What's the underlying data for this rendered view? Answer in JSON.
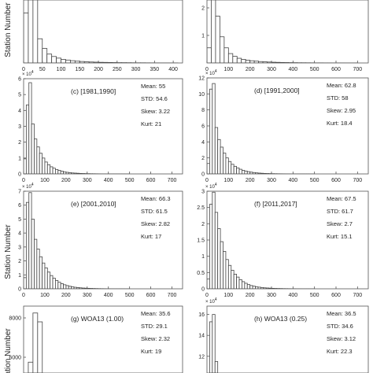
{
  "ylabel": "Station Number",
  "chart_data": [
    {
      "type": "bar",
      "panel": "top-left (partially visible, cropped at top)",
      "title": "",
      "ylabel": "Station Number",
      "xticks": [
        0,
        50,
        100,
        150,
        200,
        250,
        300,
        350,
        400
      ],
      "xlim": [
        0,
        425
      ],
      "yticks": [],
      "ymax": 3.9,
      "bin_width": 12.5,
      "values": [
        3.1,
        8.0,
        4.1,
        1.5,
        0.9,
        0.55,
        0.4,
        0.3,
        0.22,
        0.18,
        0.14,
        0.11,
        0.09,
        0.07,
        0.06,
        0.05,
        0.04,
        0.035,
        0.03,
        0.025,
        0.02,
        0.018,
        0.015,
        0.012,
        0.01,
        0.01,
        0.008,
        0.007,
        0.006,
        0.005,
        0.005,
        0.004,
        0.004
      ]
    },
    {
      "type": "bar",
      "panel": "top-right (partially visible, cropped at top)",
      "title": "",
      "xticks": [
        0,
        100,
        200,
        300,
        400,
        500,
        600,
        700
      ],
      "xlim": [
        0,
        750
      ],
      "yticks": [
        1,
        2
      ],
      "ymax": 2.3,
      "bin_width": 20,
      "values": [
        0.55,
        2.9,
        1.7,
        0.95,
        0.55,
        0.34,
        0.24,
        0.17,
        0.13,
        0.1,
        0.08,
        0.065,
        0.05,
        0.04,
        0.033,
        0.027,
        0.022,
        0.018,
        0.015,
        0.012,
        0.01,
        0.008,
        0.007,
        0.006,
        0.005,
        0.004,
        0.004,
        0.003,
        0.003,
        0.002,
        0.002,
        0.002,
        0.001,
        0.001,
        0.001
      ]
    },
    {
      "type": "bar",
      "panel": "(c)",
      "title": "(c)   [1981,1990]",
      "exponent": "× 10",
      "exponent_power": "4",
      "xticks": [
        0,
        100,
        200,
        300,
        400,
        500,
        600,
        700
      ],
      "xlim": [
        0,
        750
      ],
      "yticks": [
        0,
        1,
        2,
        3,
        4,
        5,
        6
      ],
      "ylim": [
        0,
        6
      ],
      "bin_width": 12.5,
      "stats": [
        "Mean: 55",
        "STD: 54.6",
        "Skew: 3.22",
        "Kurt: 21"
      ],
      "values": [
        0.95,
        4.35,
        5.75,
        3.15,
        2.2,
        1.7,
        1.3,
        1.0,
        0.75,
        0.58,
        0.45,
        0.36,
        0.28,
        0.22,
        0.17,
        0.13,
        0.1,
        0.08,
        0.06,
        0.05,
        0.04,
        0.03,
        0.025,
        0.02,
        0.015,
        0.012,
        0.01,
        0.008,
        0.006,
        0.005,
        0.004,
        0.003,
        0.003,
        0.002,
        0.002,
        0.002,
        0.001,
        0.001,
        0.001,
        0.001
      ]
    },
    {
      "type": "bar",
      "panel": "(d)",
      "title": "(d)   [1991,2000]",
      "exponent": "× 10",
      "exponent_power": "4",
      "xticks": [
        0,
        100,
        200,
        300,
        400,
        500,
        600,
        700
      ],
      "xlim": [
        0,
        750
      ],
      "yticks": [
        0,
        2,
        4,
        6,
        8,
        10,
        12
      ],
      "ylim": [
        0,
        12
      ],
      "bin_width": 12.5,
      "stats": [
        "Mean: 62.8",
        "STD: 58",
        "Skew: 2.95",
        "Kurt: 18.4"
      ],
      "values": [
        1.3,
        10.6,
        11.3,
        5.8,
        4.3,
        3.35,
        2.6,
        2.0,
        1.55,
        1.2,
        0.95,
        0.75,
        0.58,
        0.45,
        0.36,
        0.28,
        0.22,
        0.17,
        0.13,
        0.1,
        0.08,
        0.06,
        0.05,
        0.04,
        0.03,
        0.025,
        0.02,
        0.015,
        0.012,
        0.01,
        0.008,
        0.006,
        0.005,
        0.004,
        0.003,
        0.003,
        0.002,
        0.002,
        0.001,
        0.001
      ]
    },
    {
      "type": "bar",
      "panel": "(e)",
      "title": "(e)   [2001,2010]",
      "exponent": "× 10",
      "exponent_power": "4",
      "xticks": [
        0,
        100,
        200,
        300,
        400,
        500,
        600,
        700
      ],
      "xlim": [
        0,
        750
      ],
      "yticks": [
        0,
        1,
        2,
        3,
        4,
        5,
        6,
        7
      ],
      "ylim": [
        0,
        7
      ],
      "bin_width": 12.5,
      "stats": [
        "Mean: 66.3",
        "STD: 61.5",
        "Skew: 2.82",
        "Kurt: 17"
      ],
      "values": [
        0.8,
        6.2,
        6.9,
        5.0,
        3.55,
        2.85,
        2.3,
        1.85,
        1.5,
        1.2,
        0.95,
        0.76,
        0.6,
        0.47,
        0.37,
        0.29,
        0.23,
        0.18,
        0.14,
        0.11,
        0.09,
        0.07,
        0.055,
        0.045,
        0.035,
        0.028,
        0.022,
        0.017,
        0.013,
        0.01,
        0.008,
        0.006,
        0.005,
        0.004,
        0.003,
        0.003,
        0.002,
        0.002,
        0.001,
        0.001
      ]
    },
    {
      "type": "bar",
      "panel": "(f)",
      "title": "(f)   [2011,2017]",
      "exponent": "× 10",
      "exponent_power": "4",
      "xticks": [
        0,
        100,
        200,
        300,
        400,
        500,
        600,
        700
      ],
      "xlim": [
        0,
        750
      ],
      "yticks": [
        0,
        0.5,
        1,
        1.5,
        2,
        2.5,
        3
      ],
      "ytick_labels": [
        "0",
        "0.5",
        "1",
        "1.5",
        "2",
        "2.5",
        "3"
      ],
      "ylim": [
        0,
        3
      ],
      "bin_width": 12.5,
      "stats": [
        "Mean: 67.5",
        "STD: 61.7",
        "Skew: 2.7",
        "Kurt: 15.1"
      ],
      "values": [
        0.3,
        2.6,
        2.97,
        2.35,
        1.85,
        1.45,
        1.15,
        0.9,
        0.72,
        0.57,
        0.45,
        0.36,
        0.28,
        0.22,
        0.17,
        0.13,
        0.1,
        0.08,
        0.06,
        0.05,
        0.04,
        0.03,
        0.025,
        0.02,
        0.015,
        0.012,
        0.01,
        0.008,
        0.006,
        0.005,
        0.004,
        0.003,
        0.003,
        0.002,
        0.002,
        0.001,
        0.001,
        0.001,
        0.001,
        0.001
      ]
    },
    {
      "type": "bar",
      "panel": "(g) (partially visible, cropped at bottom)",
      "title": "(g) WOA13 (1.00)",
      "xlim": [
        0,
        425
      ],
      "yticks": [
        8000,
        6000
      ],
      "ylim_visible": [
        5200,
        8600
      ],
      "bin_width": 12.5,
      "stats": [
        "Mean: 35.6",
        "STD: 29.1",
        "Skew: 2.32",
        "Kurt: 19"
      ],
      "values": [
        0,
        5750,
        8250,
        7800,
        4500
      ]
    },
    {
      "type": "bar",
      "panel": "(h) (partially visible, cropped at bottom)",
      "title": "(h) WOA13 (0.25)",
      "exponent": "× 10",
      "exponent_power": "4",
      "xlim": [
        0,
        750
      ],
      "yticks": [
        16,
        14,
        12
      ],
      "ylim_visible": [
        10.4,
        16.8
      ],
      "bin_width": 12.5,
      "stats": [
        "Mean: 36.5",
        "STD: 34.6",
        "Skew: 3.12",
        "Kurt: 22.3"
      ],
      "values": [
        0,
        15.3,
        16.0,
        11.5,
        5.0
      ]
    }
  ]
}
